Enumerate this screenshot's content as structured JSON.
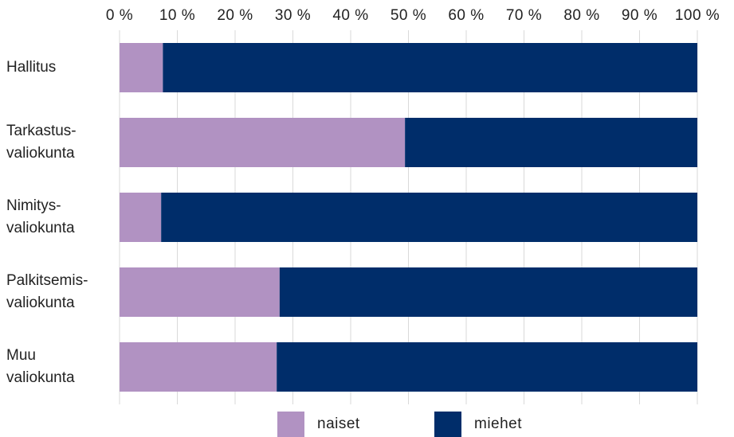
{
  "chart_data": {
    "type": "stacked_barh",
    "categories": [
      "Hallitus",
      "Tarkastus-\nvaliokunta",
      "Nimitys-\nvaliokunta",
      "Palkitsemis-\nvaliokunta",
      "Muu\nvaliokunta"
    ],
    "series": [
      {
        "name": "naiset",
        "color": "#b192c2",
        "values": [
          7.5,
          49.4,
          7.2,
          27.7,
          27.2
        ]
      },
      {
        "name": "miehet",
        "color": "#002d6a",
        "values": [
          92.5,
          50.6,
          92.8,
          72.3,
          72.8
        ]
      }
    ],
    "xlim": [
      0,
      100
    ],
    "xticks": [
      {
        "value": 0,
        "label": "0 %"
      },
      {
        "value": 10,
        "label": "10 %"
      },
      {
        "value": 20,
        "label": "20 %"
      },
      {
        "value": 30,
        "label": "30 %"
      },
      {
        "value": 40,
        "label": "40 %"
      },
      {
        "value": 50,
        "label": "50 %"
      },
      {
        "value": 60,
        "label": "60 %"
      },
      {
        "value": 70,
        "label": "70 %"
      },
      {
        "value": 80,
        "label": "80 %"
      },
      {
        "value": 90,
        "label": "90 %"
      },
      {
        "value": 100,
        "label": "100 %"
      }
    ],
    "grid": true,
    "legend": "bottom"
  }
}
